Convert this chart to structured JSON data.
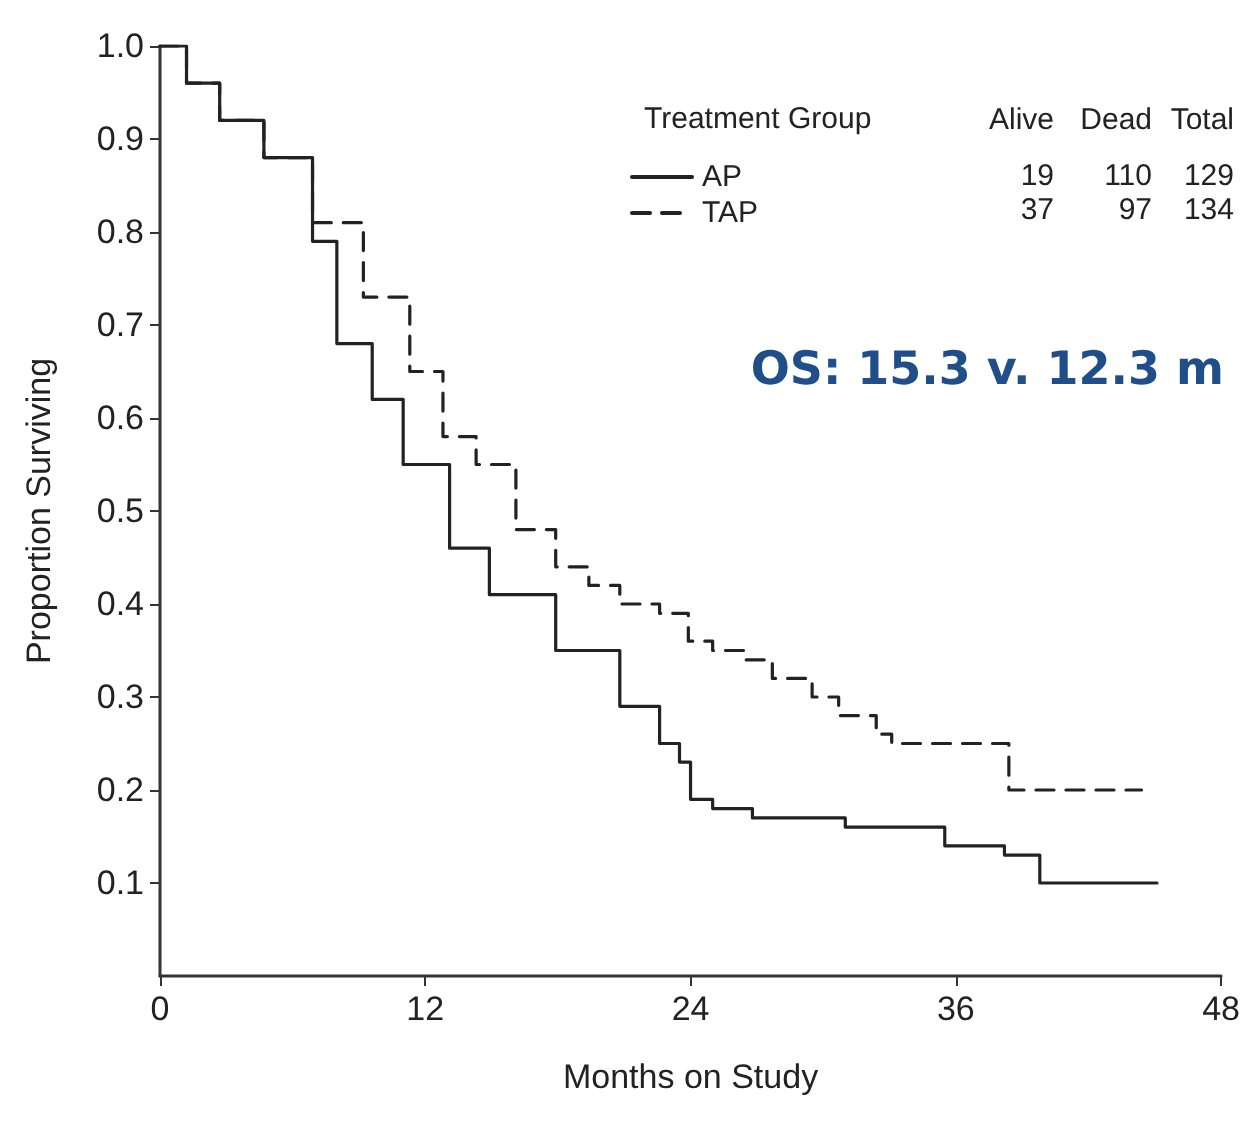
{
  "chart_data": {
    "type": "step",
    "xlabel": "Months on Study",
    "ylabel": "Proportion Surviving",
    "legend_title": "Treatment Group",
    "legend": "top right",
    "grid": false,
    "xlim": [
      0,
      48
    ],
    "xticks": [
      0,
      12,
      24,
      36,
      48
    ],
    "ylim": [
      0,
      1
    ],
    "yticks": [
      0.1,
      0.2,
      0.3,
      0.4,
      0.5,
      0.6,
      0.7,
      0.8,
      0.9,
      {
        "value": 1,
        "label": "1.0"
      }
    ],
    "series": [
      {
        "name": "AP",
        "color": "#222222",
        "line_style": "solid",
        "x": [
          0,
          1.2,
          2.7,
          4.7,
          6.9,
          8.0,
          9.6,
          11.0,
          13.1,
          14.9,
          17.9,
          20.8,
          22.6,
          23.5,
          24.0,
          25.0,
          26.8,
          31.0,
          35.5,
          38.2,
          39.8,
          45.1
        ],
        "values": [
          1.0,
          0.96,
          0.92,
          0.88,
          0.79,
          0.68,
          0.62,
          0.55,
          0.46,
          0.41,
          0.35,
          0.29,
          0.25,
          0.23,
          0.19,
          0.18,
          0.17,
          0.16,
          0.14,
          0.13,
          0.1,
          0.1
        ]
      },
      {
        "name": "TAP",
        "color": "#222222",
        "line_style": "dashed",
        "x": [
          0,
          1.2,
          2.7,
          4.7,
          6.9,
          9.2,
          11.3,
          12.8,
          14.3,
          16.1,
          17.9,
          19.4,
          20.8,
          22.6,
          23.9,
          25.0,
          26.5,
          27.7,
          29.5,
          30.7,
          32.4,
          33.1,
          38.4,
          44.4
        ],
        "values": [
          1.0,
          0.96,
          0.92,
          0.88,
          0.81,
          0.73,
          0.65,
          0.58,
          0.55,
          0.48,
          0.44,
          0.42,
          0.4,
          0.39,
          0.36,
          0.35,
          0.34,
          0.32,
          0.3,
          0.28,
          0.26,
          0.25,
          0.2,
          0.2
        ]
      }
    ],
    "annotations": [
      "Alive",
      "Dead",
      "Total",
      "19",
      "110",
      "129",
      "37",
      "97",
      "134",
      "OS: 15.3 v. 12.3 m"
    ]
  }
}
